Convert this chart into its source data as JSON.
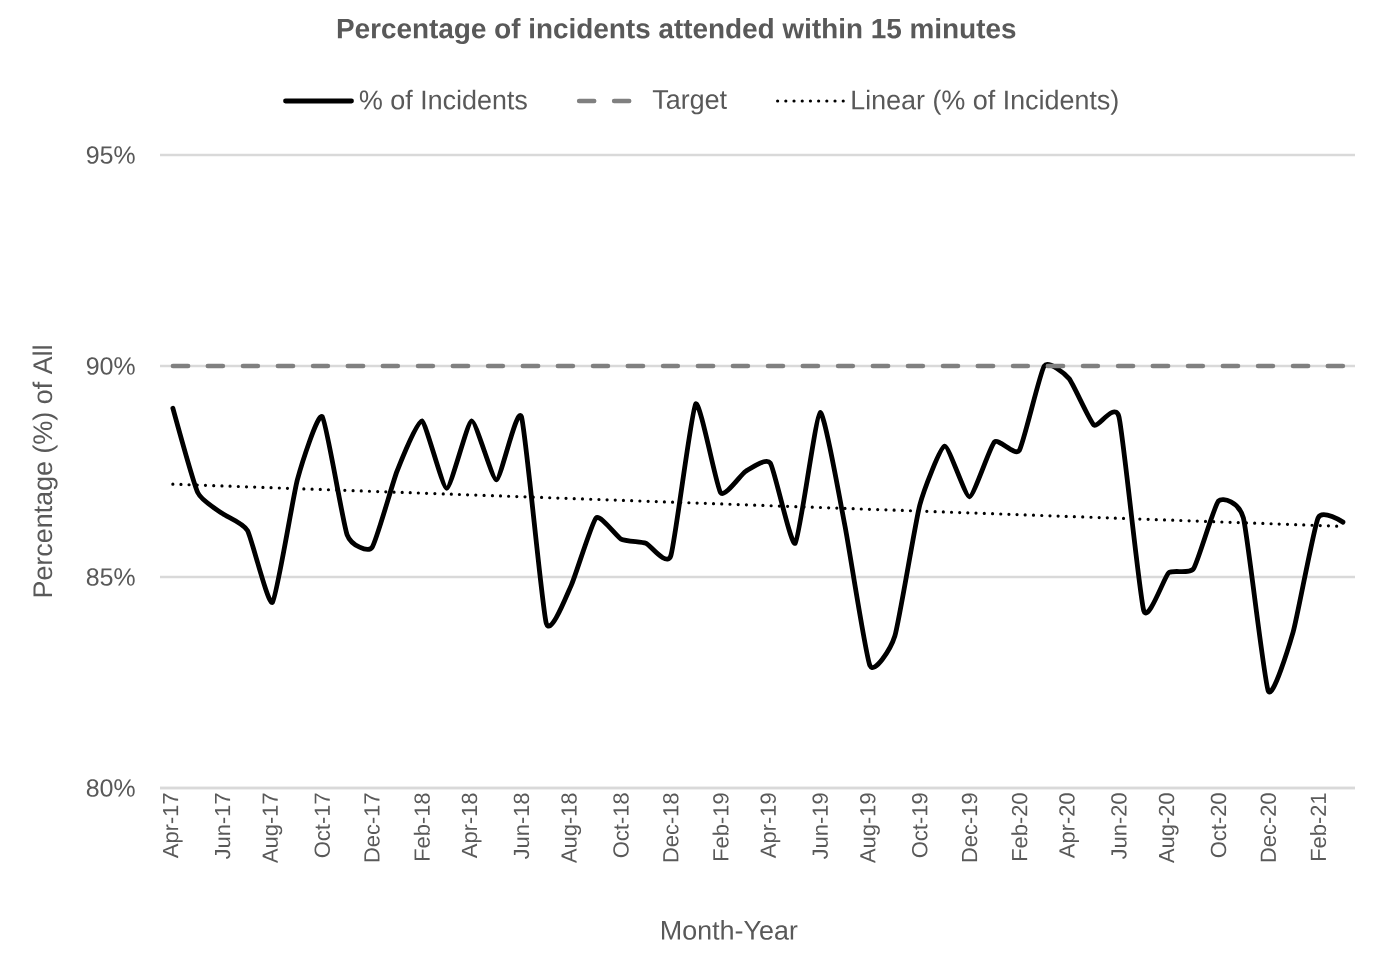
{
  "chart_data": {
    "type": "line",
    "title": "Percentage of incidents attended within 15 minutes",
    "xlabel": "Month-Year",
    "ylabel": "Percentage (%) of All",
    "x": [
      "2017-04",
      "2017-05",
      "2017-06",
      "2017-07",
      "2017-08",
      "2017-09",
      "2017-10",
      "2017-11",
      "2017-12",
      "2018-01",
      "2018-02",
      "2018-03",
      "2018-04",
      "2018-05",
      "2018-06",
      "2018-07",
      "2018-08",
      "2018-09",
      "2018-10",
      "2018-11",
      "2018-12",
      "2019-01",
      "2019-02",
      "2019-03",
      "2019-04",
      "2019-05",
      "2019-06",
      "2019-07",
      "2019-08",
      "2019-09",
      "2019-10",
      "2019-11",
      "2019-12",
      "2020-01",
      "2020-02",
      "2020-03",
      "2020-04",
      "2020-05",
      "2020-06",
      "2020-07",
      "2020-08",
      "2020-09",
      "2020-10",
      "2020-11",
      "2020-12",
      "2021-01",
      "2021-02",
      "2021-03"
    ],
    "series": [
      {
        "name": "% of Incidents",
        "color": "#000000",
        "values": [
          89.0,
          87.0,
          86.5,
          86.1,
          84.4,
          87.3,
          88.8,
          86.0,
          85.7,
          87.5,
          88.7,
          87.1,
          88.7,
          87.3,
          88.8,
          83.9,
          84.8,
          86.4,
          85.9,
          85.8,
          85.5,
          89.1,
          87.0,
          87.5,
          87.7,
          85.8,
          88.9,
          86.2,
          82.9,
          83.6,
          86.7,
          88.1,
          86.9,
          88.2,
          88.0,
          90.0,
          89.7,
          88.6,
          88.8,
          84.2,
          85.1,
          85.2,
          86.8,
          86.4,
          82.3,
          83.7,
          86.4,
          86.3
        ]
      },
      {
        "name": "Target",
        "color": "#808080",
        "line_style": "dashed",
        "values": [
          90,
          90,
          90,
          90,
          90,
          90,
          90,
          90,
          90,
          90,
          90,
          90,
          90,
          90,
          90,
          90,
          90,
          90,
          90,
          90,
          90,
          90,
          90,
          90,
          90,
          90,
          90,
          90,
          90,
          90,
          90,
          90,
          90,
          90,
          90,
          90,
          90,
          90,
          90,
          90,
          90,
          90,
          90,
          90,
          90,
          90,
          90,
          90
        ]
      },
      {
        "name": "Linear (% of Incidents)",
        "color": "#000000",
        "line_style": "dotted",
        "x": [
          "2017-04",
          "2021-03"
        ],
        "values": [
          87.2,
          86.2
        ]
      }
    ],
    "xlim": [
      "2017-03-16",
      "2021-03-16"
    ],
    "xticks": [
      {
        "value": "2017-04",
        "label": "Apr-17"
      },
      {
        "value": "2017-06",
        "label": "Jun-17"
      },
      {
        "value": "2017-08",
        "label": "Aug-17"
      },
      {
        "value": "2017-10",
        "label": "Oct-17"
      },
      {
        "value": "2017-12",
        "label": "Dec-17"
      },
      {
        "value": "2018-02",
        "label": "Feb-18"
      },
      {
        "value": "2018-04",
        "label": "Apr-18"
      },
      {
        "value": "2018-06",
        "label": "Jun-18"
      },
      {
        "value": "2018-08",
        "label": "Aug-18"
      },
      {
        "value": "2018-10",
        "label": "Oct-18"
      },
      {
        "value": "2018-12",
        "label": "Dec-18"
      },
      {
        "value": "2019-02",
        "label": "Feb-19"
      },
      {
        "value": "2019-04",
        "label": "Apr-19"
      },
      {
        "value": "2019-06",
        "label": "Jun-19"
      },
      {
        "value": "2019-08",
        "label": "Aug-19"
      },
      {
        "value": "2019-10",
        "label": "Oct-19"
      },
      {
        "value": "2019-12",
        "label": "Dec-19"
      },
      {
        "value": "2020-02",
        "label": "Feb-20"
      },
      {
        "value": "2020-04",
        "label": "Apr-20"
      },
      {
        "value": "2020-06",
        "label": "Jun-20"
      },
      {
        "value": "2020-08",
        "label": "Aug-20"
      },
      {
        "value": "2020-10",
        "label": "Oct-20"
      },
      {
        "value": "2020-12",
        "label": "Dec-20"
      },
      {
        "value": "2021-02",
        "label": "Feb-21"
      }
    ],
    "ylim": [
      80,
      95
    ],
    "yticks": [
      {
        "value": 80,
        "label": "80%"
      },
      {
        "value": 85,
        "label": "85%"
      },
      {
        "value": 90,
        "label": "90%"
      },
      {
        "value": 95,
        "label": "95%"
      }
    ],
    "grid": "y",
    "legend": "top",
    "line_style": "solid",
    "marker": "none"
  }
}
